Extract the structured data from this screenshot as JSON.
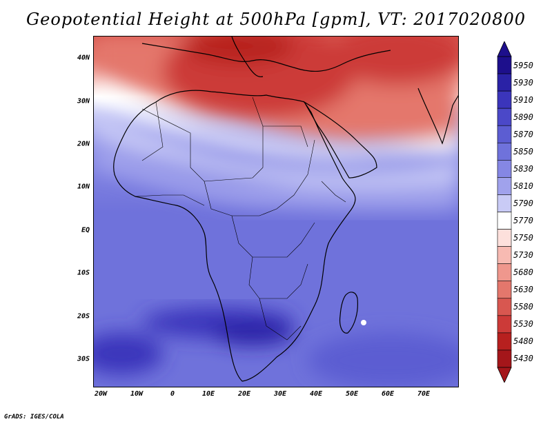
{
  "title": "Geopotential Height at 500hPa [gpm], VT: 2017020800",
  "credit": "GrADS: IGES/COLA",
  "lat_labels": [
    "40N",
    "30N",
    "20N",
    "10N",
    "EQ",
    "10S",
    "20S",
    "30S"
  ],
  "lon_labels": [
    "20W",
    "10W",
    "0",
    "10E",
    "20E",
    "30E",
    "40E",
    "50E",
    "60E",
    "70E"
  ],
  "colorbar": {
    "levels": [
      "5950",
      "5930",
      "5910",
      "5890",
      "5870",
      "5850",
      "5830",
      "5810",
      "5790",
      "5770",
      "5750",
      "5730",
      "5680",
      "5630",
      "5580",
      "5530",
      "5480",
      "5430"
    ],
    "colors": [
      "#1d0f8c",
      "#2a22a6",
      "#3b35bb",
      "#4b48c8",
      "#5c5dd2",
      "#6f72db",
      "#8587e4",
      "#a0a2ec",
      "#c9cbf6",
      "#ffffff",
      "#fde0dc",
      "#f7bab2",
      "#ef978d",
      "#e4776c",
      "#d85750",
      "#cc3a38",
      "#b7201f",
      "#a4161a"
    ],
    "triangle_top": "#1d0f8c",
    "triangle_bottom": "#a4161a"
  }
}
